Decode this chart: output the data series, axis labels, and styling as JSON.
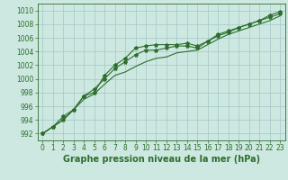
{
  "title": "Graphe pression niveau de la mer (hPa)",
  "background_color": "#cce8e0",
  "grid_color": "#aacccc",
  "line_color": "#2d6e2d",
  "xlim": [
    -0.5,
    23.5
  ],
  "ylim": [
    991,
    1011
  ],
  "yticks": [
    992,
    994,
    996,
    998,
    1000,
    1002,
    1004,
    1006,
    1008,
    1010
  ],
  "xticks": [
    0,
    1,
    2,
    3,
    4,
    5,
    6,
    7,
    8,
    9,
    10,
    11,
    12,
    13,
    14,
    15,
    16,
    17,
    18,
    19,
    20,
    21,
    22,
    23
  ],
  "line1_x": [
    0,
    1,
    2,
    3,
    4,
    5,
    6,
    7,
    8,
    9,
    10,
    11,
    12,
    13,
    14,
    15,
    16,
    17,
    18,
    19,
    20,
    21,
    22,
    23
  ],
  "line1_y": [
    992.0,
    993.0,
    994.0,
    995.5,
    997.5,
    998.5,
    1000.0,
    1001.5,
    1002.5,
    1003.5,
    1004.2,
    1004.2,
    1004.5,
    1004.8,
    1004.8,
    1004.5,
    1005.5,
    1006.3,
    1006.8,
    1007.5,
    1008.0,
    1008.5,
    1009.0,
    1009.5
  ],
  "line2_x": [
    0,
    1,
    2,
    3,
    4,
    5,
    6,
    7,
    8,
    9,
    10,
    11,
    12,
    13,
    14,
    15,
    16,
    17,
    18,
    19,
    20,
    21,
    22,
    23
  ],
  "line2_y": [
    992.0,
    993.0,
    994.5,
    995.5,
    997.5,
    998.0,
    1000.5,
    1002.0,
    1003.0,
    1004.5,
    1004.8,
    1005.0,
    1005.0,
    1005.0,
    1005.2,
    1004.8,
    1005.5,
    1006.5,
    1007.0,
    1007.5,
    1008.0,
    1008.5,
    1009.3,
    1009.8
  ],
  "line3_x": [
    0,
    1,
    2,
    3,
    4,
    5,
    6,
    7,
    8,
    9,
    10,
    11,
    12,
    13,
    14,
    15,
    16,
    17,
    18,
    19,
    20,
    21,
    22,
    23
  ],
  "line3_y": [
    992.0,
    993.0,
    994.0,
    995.5,
    997.0,
    997.8,
    999.2,
    1000.5,
    1001.0,
    1001.8,
    1002.5,
    1003.0,
    1003.2,
    1003.8,
    1004.0,
    1004.2,
    1005.0,
    1005.8,
    1006.5,
    1007.0,
    1007.5,
    1008.0,
    1008.5,
    1009.2
  ],
  "marker_size": 3,
  "line_width": 0.8,
  "title_fontsize": 7,
  "tick_fontsize": 5.5
}
